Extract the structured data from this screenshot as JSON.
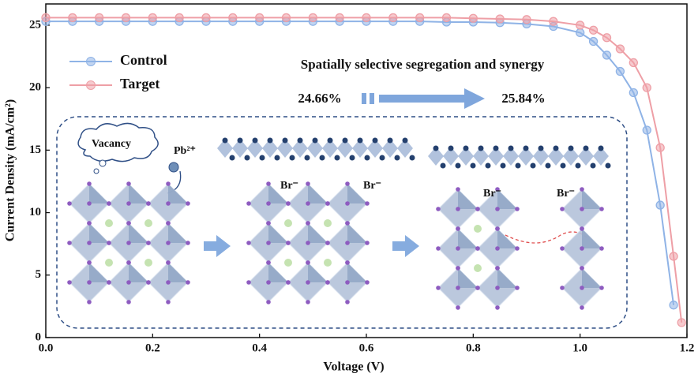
{
  "chart_data": {
    "type": "line",
    "xlabel": "Voltage (V)",
    "ylabel": "Current Density (mA/cm²)",
    "x": [
      0,
      0.05,
      0.1,
      0.15,
      0.2,
      0.25,
      0.3,
      0.35,
      0.4,
      0.45,
      0.5,
      0.55,
      0.6,
      0.65,
      0.7,
      0.75,
      0.8,
      0.85,
      0.9,
      0.95,
      1.0,
      1.025,
      1.05,
      1.075,
      1.1,
      1.125,
      1.15,
      1.175,
      1.19
    ],
    "series": [
      {
        "name": "Control",
        "color": "#8fb3e6",
        "values": [
          25.3,
          25.3,
          25.3,
          25.3,
          25.3,
          25.3,
          25.3,
          25.3,
          25.3,
          25.3,
          25.3,
          25.3,
          25.3,
          25.3,
          25.3,
          25.25,
          25.25,
          25.2,
          25.1,
          24.9,
          24.4,
          23.7,
          22.6,
          21.3,
          19.6,
          16.6,
          10.6,
          2.6,
          null
        ]
      },
      {
        "name": "Target",
        "color": "#ee9fa6",
        "values": [
          25.6,
          25.6,
          25.6,
          25.6,
          25.6,
          25.6,
          25.6,
          25.6,
          25.6,
          25.6,
          25.6,
          25.6,
          25.6,
          25.6,
          25.6,
          25.6,
          25.55,
          25.5,
          25.45,
          25.3,
          25.0,
          24.6,
          24.0,
          23.1,
          22.0,
          20.0,
          15.2,
          6.5,
          1.2
        ]
      }
    ],
    "xlim": [
      0,
      1.2
    ],
    "xticks": [
      {
        "value": 0,
        "label": "0.0"
      },
      0.2,
      0.4,
      0.6,
      0.8,
      {
        "value": 1,
        "label": "1.0"
      },
      1.2
    ],
    "ylim": [
      0,
      26.7
    ],
    "yticks": [
      0,
      5,
      10,
      15,
      20,
      25
    ],
    "legend": "upper left",
    "annotations": {
      "heading": "Spatially selective segregation and synergy",
      "before": "24.66%",
      "after": "25.84%",
      "vacancy": "Vacancy",
      "lead": "Pb²⁺",
      "bromide": [
        "Br⁻",
        "Br⁻",
        "Br⁻",
        "Br⁻"
      ]
    }
  }
}
